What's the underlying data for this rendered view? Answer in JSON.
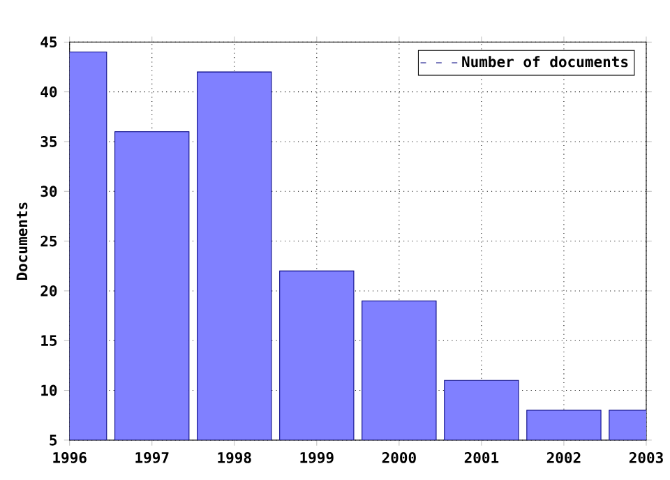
{
  "chart_data": {
    "type": "bar",
    "ylabel": "Documents",
    "x": [
      1996,
      1997,
      1998,
      1999,
      2000,
      2001,
      2002,
      2003
    ],
    "series": [
      {
        "name": "Number of documents",
        "color": "#8080ff",
        "values": [
          44,
          36,
          42,
          22,
          19,
          11,
          8,
          8
        ]
      }
    ],
    "xlim": [
      1996,
      2003
    ],
    "xticks": [
      1996,
      1997,
      1998,
      1999,
      2000,
      2001,
      2002,
      2003
    ],
    "ylim": [
      5,
      45
    ],
    "yticks": [
      5,
      10,
      15,
      20,
      25,
      30,
      35,
      40,
      45
    ],
    "grid": true,
    "legend": "top right"
  }
}
